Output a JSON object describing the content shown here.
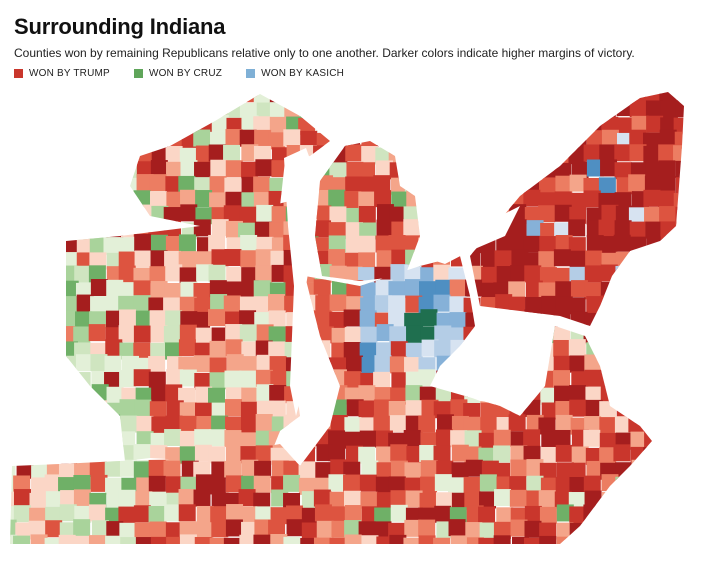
{
  "title": "Surrounding Indiana",
  "subtitle": "Counties won by remaining Republicans relative only to one another. Darker colors indicate higher margins of victory.",
  "legend": [
    {
      "label": "WON BY TRUMP",
      "color": "#c9362c"
    },
    {
      "label": "WON BY CRUZ",
      "color": "#5fa55a"
    },
    {
      "label": "WON BY KASICH",
      "color": "#7fb0d6"
    }
  ],
  "colors": {
    "trump_scale": [
      "#fbd6c6",
      "#f4a58a",
      "#ec7d62",
      "#dd5440",
      "#c9362c",
      "#a51e1e"
    ],
    "cruz_scale": [
      "#e3f0d8",
      "#cfe5c0",
      "#a9d39b",
      "#6fb067"
    ],
    "kasich_scale": [
      "#d7e3f1",
      "#b4cde6",
      "#86b1d8",
      "#4f8fc2"
    ],
    "kasich_home": "#1f6f4f",
    "background": "#ffffff"
  }
}
